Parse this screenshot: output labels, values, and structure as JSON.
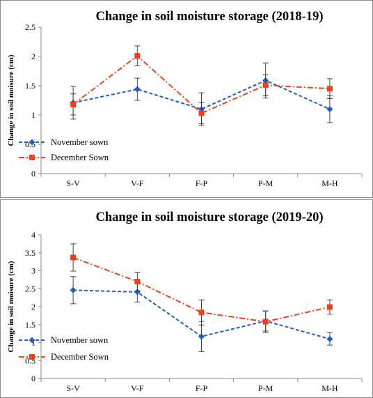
{
  "chart_data": [
    {
      "type": "line",
      "title": "Change in soil moisture storage (2018-19)",
      "xlabel": "",
      "ylabel": "Change in soil moisure (cm)",
      "categories": [
        "S-V",
        "V-F",
        "F-P",
        "P-M",
        "M-H"
      ],
      "ylim": [
        0,
        2.5
      ],
      "yticks": [
        "0",
        "0.5",
        "1",
        "1.5",
        "2",
        "2.5"
      ],
      "grid": false,
      "legend_position": "bottom-left",
      "series": [
        {
          "name": "November sown",
          "values": [
            1.21,
            1.44,
            1.1,
            1.59,
            1.1
          ],
          "errors": [
            0.28,
            0.19,
            0.28,
            0.3,
            0.23
          ],
          "color": "#1f5fbf",
          "marker": "diamond",
          "line_style": "dashed"
        },
        {
          "name": "December Sown",
          "values": [
            1.18,
            2.01,
            1.03,
            1.51,
            1.45
          ],
          "errors": [
            0.18,
            0.17,
            0.18,
            0.18,
            0.17
          ],
          "color": "#e8431d",
          "marker": "square",
          "line_style": "dash-dot"
        }
      ]
    },
    {
      "type": "line",
      "title": "Change in soil moisture storage (2019-20)",
      "xlabel": "",
      "ylabel": "Change in soil moisure (cm)",
      "categories": [
        "S-V",
        "V-F",
        "F-P",
        "P-M",
        "M-H"
      ],
      "ylim": [
        0,
        4
      ],
      "yticks": [
        "0",
        "0.5",
        "1",
        "1.5",
        "2",
        "2.5",
        "3",
        "3.5",
        "4"
      ],
      "grid": false,
      "legend_position": "bottom-left",
      "series": [
        {
          "name": "November sown",
          "values": [
            2.46,
            2.41,
            1.17,
            1.6,
            1.1
          ],
          "errors": [
            0.38,
            0.28,
            0.42,
            0.28,
            0.17
          ],
          "color": "#1f5fbf",
          "marker": "diamond",
          "line_style": "dashed"
        },
        {
          "name": "December Sown",
          "values": [
            3.37,
            2.7,
            1.84,
            1.58,
            1.99
          ],
          "errors": [
            0.38,
            0.26,
            0.35,
            0.3,
            0.2
          ],
          "color": "#e8431d",
          "marker": "square",
          "line_style": "dash-dot"
        }
      ]
    }
  ]
}
